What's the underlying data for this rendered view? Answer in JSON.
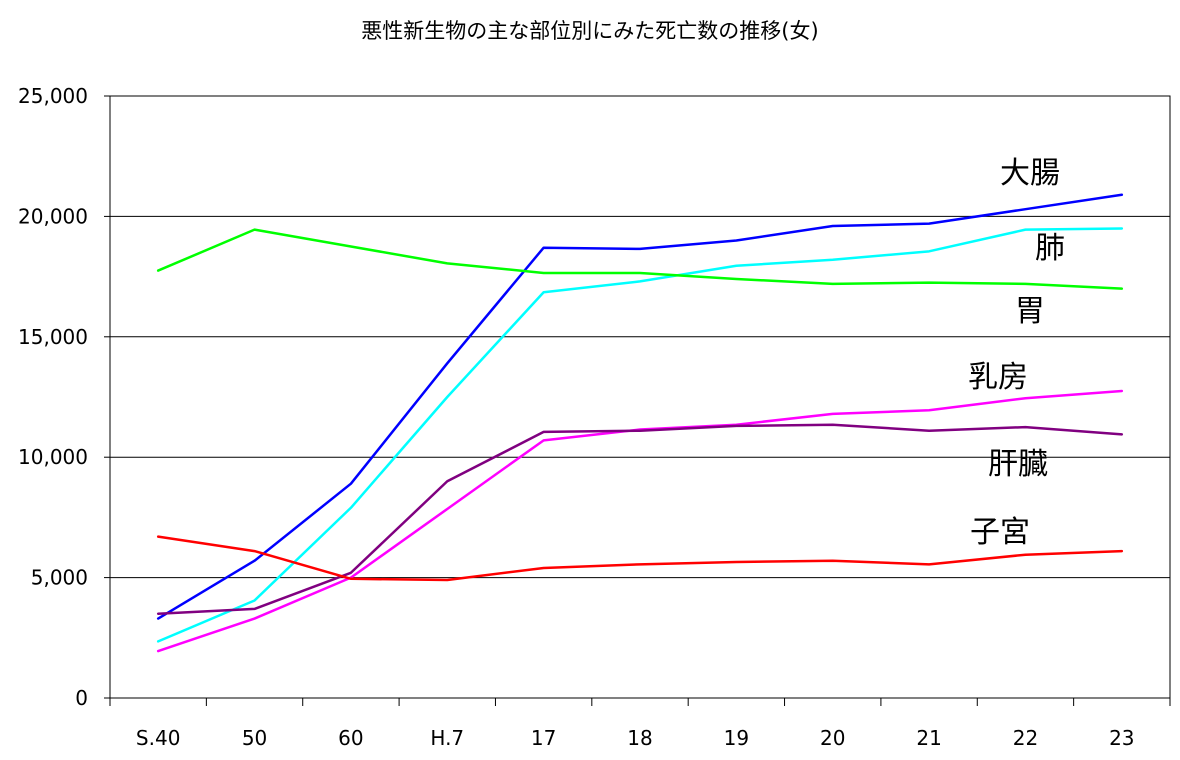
{
  "chart_data": {
    "type": "line",
    "title": "悪性新生物の主な部位別にみた死亡数の推移(女)",
    "xlabel": "",
    "ylabel": "",
    "categories": [
      "S.40",
      "50",
      "60",
      "H.7",
      "17",
      "18",
      "19",
      "20",
      "21",
      "22",
      "23"
    ],
    "ylim": [
      0,
      25000
    ],
    "yticks": [
      0,
      5000,
      10000,
      15000,
      20000,
      25000
    ],
    "ytick_labels": [
      "0",
      "5,000",
      "10,000",
      "15,000",
      "20,000",
      "25,000"
    ],
    "grid": true,
    "legend": "none",
    "series": [
      {
        "name": "大腸",
        "color": "#0000ff",
        "values": [
          3300,
          5700,
          8900,
          13900,
          18700,
          18650,
          19000,
          19600,
          19700,
          20300,
          20900
        ]
      },
      {
        "name": "肺",
        "color": "#00ffff",
        "values": [
          2350,
          4050,
          7900,
          12500,
          16850,
          17300,
          17950,
          18200,
          18550,
          19450,
          19500
        ]
      },
      {
        "name": "胃",
        "color": "#00ff00",
        "values": [
          17750,
          19450,
          18750,
          18050,
          17650,
          17650,
          17400,
          17200,
          17250,
          17200,
          17000
        ]
      },
      {
        "name": "乳房",
        "color": "#ff00ff",
        "values": [
          1950,
          3300,
          5000,
          7850,
          10700,
          11150,
          11350,
          11800,
          11950,
          12450,
          12750
        ]
      },
      {
        "name": "肝臓",
        "color": "#800080",
        "values": [
          3500,
          3700,
          5200,
          9000,
          11050,
          11100,
          11300,
          11350,
          11100,
          11250,
          10950
        ]
      },
      {
        "name": "子宮",
        "color": "#ff0000",
        "values": [
          6700,
          6100,
          4950,
          4900,
          5400,
          5550,
          5650,
          5700,
          5550,
          5950,
          6100
        ]
      }
    ]
  }
}
